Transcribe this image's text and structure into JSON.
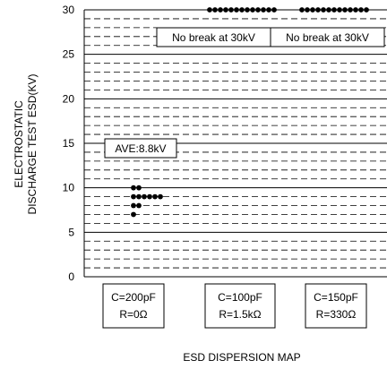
{
  "chart_data": {
    "type": "scatter",
    "title": "ESD DISPERSION MAP",
    "ylabel": [
      "ELECTROSTATIC",
      "DISCHARGE TEST ESD(KV)"
    ],
    "ylim": [
      0,
      30
    ],
    "yticks": [
      0,
      5,
      10,
      15,
      20,
      25,
      30
    ],
    "minor_grid_step": 1,
    "grid": true,
    "categories": [
      {
        "label1": "C=200pF",
        "label2": "R=0Ω"
      },
      {
        "label1": "C=100pF",
        "label2": "R=1.5kΩ"
      },
      {
        "label1": "C=150pF",
        "label2": "R=330Ω"
      }
    ],
    "series": [
      {
        "values": [
          7,
          8,
          8,
          9,
          9,
          9,
          9,
          9,
          9,
          10,
          10
        ]
      },
      {
        "values": [
          30,
          30,
          30,
          30,
          30,
          30,
          30,
          30,
          30,
          30,
          30,
          30,
          30
        ]
      },
      {
        "values": [
          30,
          30,
          30,
          30,
          30,
          30,
          30,
          30,
          30,
          30,
          30,
          30,
          30
        ]
      }
    ],
    "annotations": [
      {
        "text": "AVE:8.8kV",
        "category": 0,
        "y": 15
      },
      {
        "text": "No break at 30kV",
        "category": 1,
        "y": 27
      },
      {
        "text": "No break at 30kV",
        "category": 2,
        "y": 27
      }
    ],
    "colors": {
      "points": "#000000",
      "grid": "#000000",
      "box_border": "#000000"
    }
  }
}
